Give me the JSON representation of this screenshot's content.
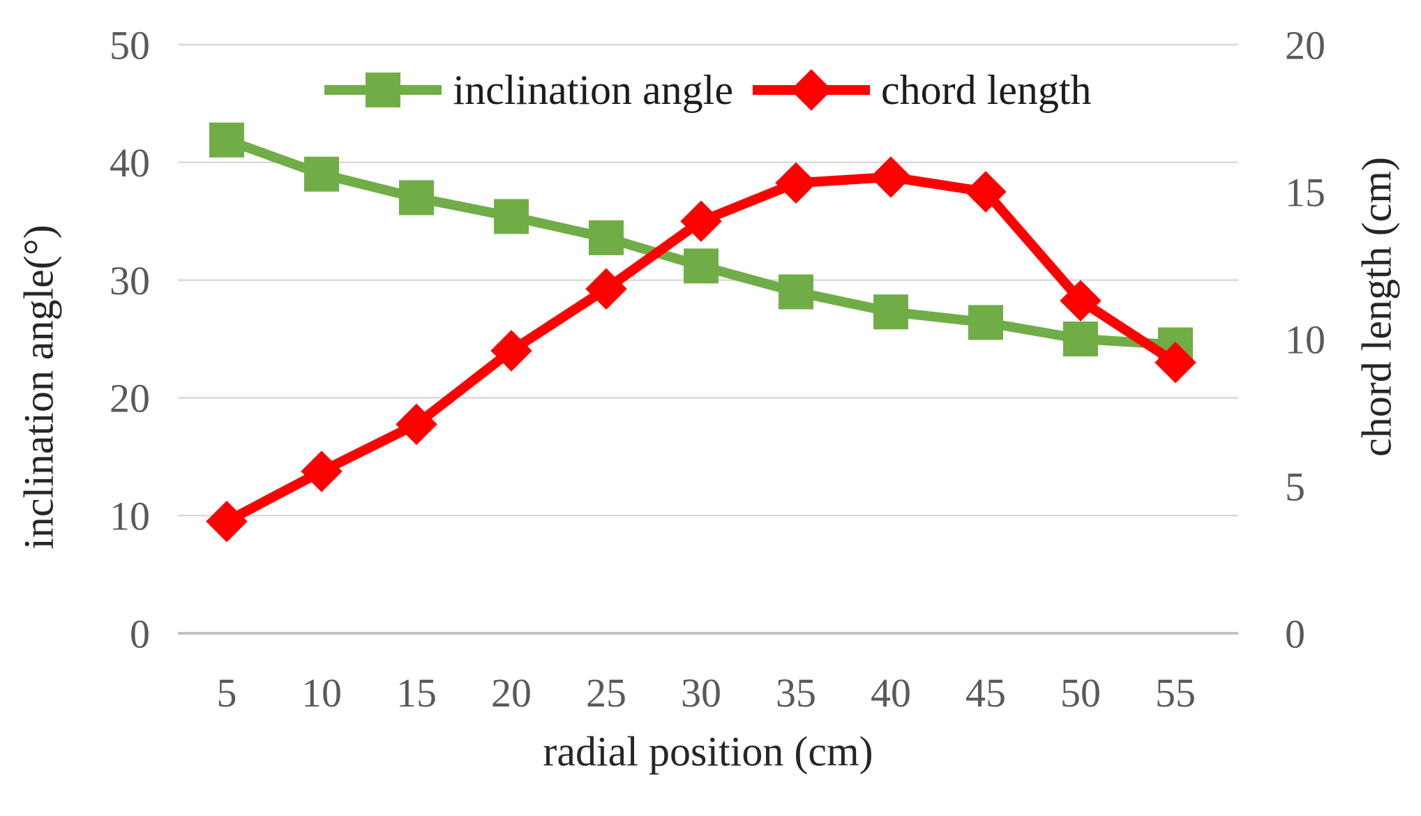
{
  "chart_data": {
    "type": "line",
    "title": "",
    "xlabel": "radial position (cm)",
    "x": [
      5,
      10,
      15,
      20,
      25,
      30,
      35,
      40,
      45,
      50,
      55
    ],
    "x_tick_labels": [
      "5",
      "10",
      "15",
      "20",
      "25",
      "30",
      "35",
      "40",
      "45",
      "50",
      "55"
    ],
    "left_axis": {
      "label": "inclination angle(°)",
      "range": [
        0,
        50
      ],
      "ticks": [
        0,
        10,
        20,
        30,
        40,
        50
      ]
    },
    "right_axis": {
      "label": "chord length (cm)",
      "range": [
        0,
        20
      ],
      "ticks": [
        0,
        5,
        10,
        15,
        20
      ]
    },
    "grid": true,
    "legend_position": "top",
    "series": [
      {
        "name": "inclination angle",
        "axis": "left",
        "color": "#70AD47",
        "marker": "square",
        "values": [
          41.9,
          39.0,
          37.0,
          35.4,
          33.6,
          31.2,
          29.0,
          27.3,
          26.4,
          25.0,
          24.5
        ]
      },
      {
        "name": "chord length",
        "axis": "right",
        "color": "#FF0000",
        "marker": "diamond",
        "values": [
          3.8,
          5.5,
          7.1,
          9.6,
          11.7,
          14.0,
          15.3,
          15.5,
          15.0,
          11.3,
          9.2
        ]
      }
    ]
  },
  "colors": {
    "gridline": "#D9D9D9",
    "axis_line": "#C2C2C2",
    "tick_text": "#595959",
    "title_text": "#262626",
    "background": "#FFFFFF"
  }
}
